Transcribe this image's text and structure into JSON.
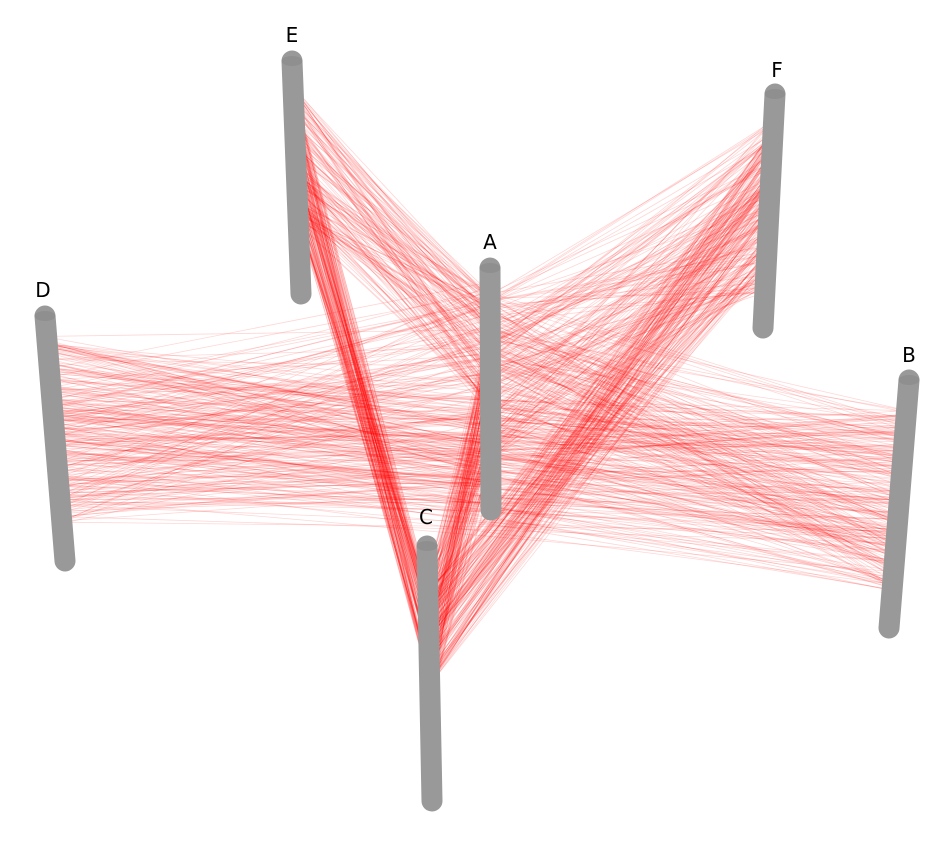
{
  "diagram": {
    "type": "hive-plot-3d",
    "axes": [
      {
        "id": "A",
        "label": "A"
      },
      {
        "id": "B",
        "label": "B"
      },
      {
        "id": "C",
        "label": "C"
      },
      {
        "id": "D",
        "label": "D"
      },
      {
        "id": "E",
        "label": "E"
      },
      {
        "id": "F",
        "label": "F"
      }
    ],
    "connections": [
      {
        "from": "A",
        "to": "B"
      },
      {
        "from": "A",
        "to": "C"
      },
      {
        "from": "A",
        "to": "D"
      },
      {
        "from": "A",
        "to": "E"
      },
      {
        "from": "A",
        "to": "F"
      },
      {
        "from": "D",
        "to": "B"
      },
      {
        "from": "E",
        "to": "C"
      },
      {
        "from": "F",
        "to": "C"
      }
    ]
  },
  "colors": {
    "axis": "#999999",
    "edge": "#ff0000",
    "background": "#ffffff"
  }
}
